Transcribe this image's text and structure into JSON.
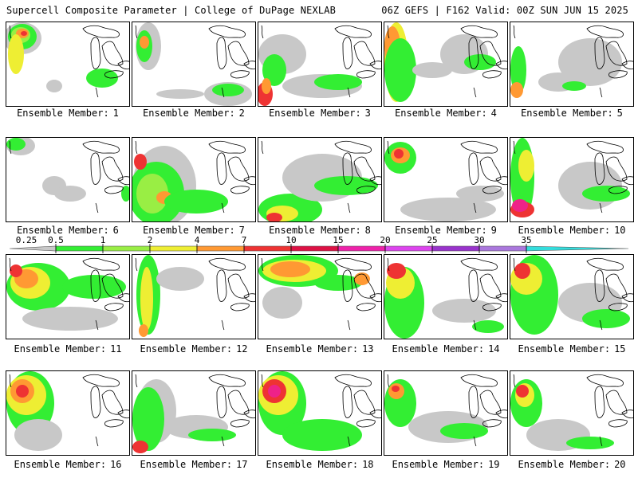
{
  "header": {
    "left": "Supercell Composite Parameter | College of DuPage NEXLAB",
    "right": "06Z GEFS | F162 Valid: 00Z SUN JUN 15 2025"
  },
  "member_label_prefix": "Ensemble Member:",
  "members": [
    "1",
    "2",
    "3",
    "4",
    "5",
    "6",
    "7",
    "8",
    "9",
    "10",
    "11",
    "12",
    "13",
    "14",
    "15",
    "16",
    "17",
    "18",
    "19",
    "20"
  ],
  "colorbar": {
    "tick_labels": [
      "0.25",
      "0.5",
      "1",
      "2",
      "4",
      "7",
      "10",
      "15",
      "20",
      "25",
      "30",
      "35"
    ],
    "colors": [
      "#c8c8c8",
      "#33ee33",
      "#99ee44",
      "#eeee33",
      "#ff9933",
      "#ee3333",
      "#dd1144",
      "#ee22aa",
      "#dd44ee",
      "#9933cc",
      "#aa77dd",
      "#33dddd"
    ]
  },
  "fill_colors": {
    "gray": "#c8c8c8",
    "green": "#33ee33",
    "lime": "#99ee44",
    "yellow": "#eeee33",
    "orange": "#ff9933",
    "red": "#ee3333",
    "magenta": "#ee2288"
  }
}
